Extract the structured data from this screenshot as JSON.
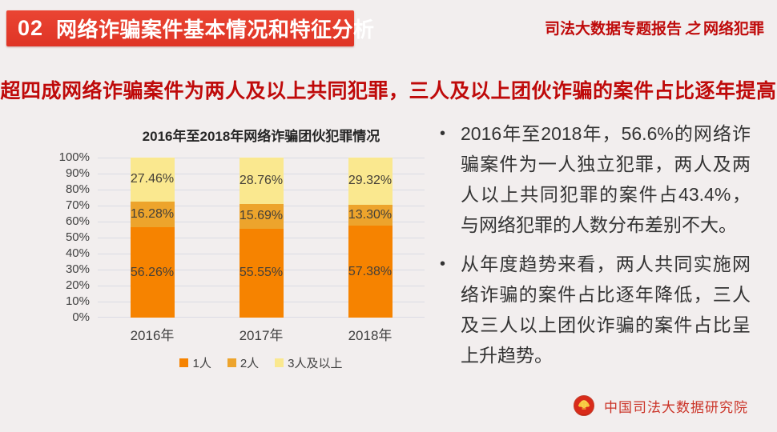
{
  "header": {
    "badge_number": "02",
    "title": "网络诈骗案件基本情况和特征分析",
    "box_color": "#E63E2D",
    "report_series_prefix": "司法大数据专题报告",
    "report_series_conj": "之",
    "report_series_topic": "网络犯罪",
    "accent_color": "#BF0A0A"
  },
  "banner": {
    "text": "超四成网络诈骗案件为两人及以上共同犯罪，三人及以上团伙诈骗的案件占比逐年提高"
  },
  "chart_data": {
    "type": "bar",
    "stacked": true,
    "title": "2016年至2018年网络诈骗团伙犯罪情况",
    "categories": [
      "2016年",
      "2017年",
      "2018年"
    ],
    "series": [
      {
        "name": "1人",
        "color": "#F68300",
        "values": [
          56.26,
          55.55,
          57.38
        ],
        "labels": [
          "56.26%",
          "55.55%",
          "57.38%"
        ]
      },
      {
        "name": "2人",
        "color": "#EDA42C",
        "values": [
          16.28,
          15.69,
          13.3
        ],
        "labels": [
          "16.28%",
          "15.69%",
          "13.30%"
        ]
      },
      {
        "name": "3人及以上",
        "color": "#FAE88F",
        "values": [
          27.46,
          28.76,
          29.32
        ],
        "labels": [
          "27.46%",
          "28.76%",
          "29.32%"
        ]
      }
    ],
    "ylabel": "",
    "xlabel": "",
    "ylim": [
      0,
      100
    ],
    "yticks": [
      "0%",
      "10%",
      "20%",
      "30%",
      "40%",
      "50%",
      "60%",
      "70%",
      "80%",
      "90%",
      "100%"
    ],
    "grid": true,
    "legend_position": "bottom"
  },
  "bullets": [
    "2016年至2018年，56.6%的网络诈骗案件为一人独立犯罪，两人及两人以上共同犯罪的案件占43.4%，与网络犯罪的人数分布差别不大。",
    "从年度趋势来看，两人共同实施网络诈骗的案件占比逐年降低，三人及三人以上团伙诈骗的案件占比呈上升趋势。"
  ],
  "bullet_marker": "•",
  "footer": {
    "org": "中国司法大数据研究院",
    "logo": "court-emblem",
    "color": "#CB3428"
  }
}
